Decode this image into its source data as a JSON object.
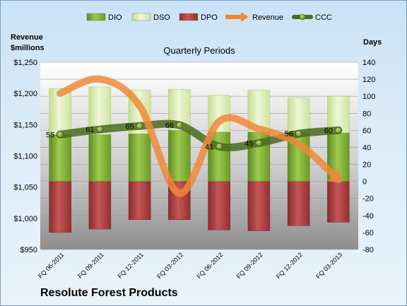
{
  "chart_data": {
    "type": "bar",
    "title": "Quarterly Periods",
    "company": "Resolute Forest Products",
    "left_axis_title_line1": "Revenue",
    "left_axis_title_line2": "$millions",
    "right_axis_title": "Days",
    "left_ylim": [
      950,
      1250
    ],
    "right_ylim": [
      -80,
      140
    ],
    "left_ticks": [
      "$950",
      "$1,000",
      "$1,050",
      "$1,100",
      "$1,150",
      "$1,200",
      "$1,250"
    ],
    "right_ticks": [
      "-80",
      "-60",
      "-40",
      "-20",
      "0",
      "20",
      "40",
      "60",
      "80",
      "100",
      "120",
      "140"
    ],
    "categories": [
      "FQ 06-2011",
      "FQ 09-2011",
      "FQ 12-2011",
      "FQ 03-2012",
      "FQ 06-2012",
      "FQ 09-2012",
      "FQ 12-2012",
      "FQ 03-2013"
    ],
    "series": [
      {
        "name": "DIO",
        "axis": "right",
        "color": "#76a031",
        "values": [
          55,
          55,
          56,
          60,
          58,
          58,
          57,
          57
        ]
      },
      {
        "name": "DSO",
        "axis": "right",
        "color": "#d7e8ae",
        "values": [
          54,
          56,
          51,
          48,
          43,
          49,
          41,
          43
        ]
      },
      {
        "name": "DPO",
        "axis": "right",
        "color": "#a23a3c",
        "values": [
          -60,
          -56,
          -45,
          -45,
          -57,
          -58,
          -52,
          -48
        ]
      },
      {
        "name": "Revenue",
        "axis": "left",
        "color": "#f0883a",
        "values": [
          1200,
          1223,
          1180,
          1040,
          1155,
          1143,
          1119,
          1062
        ]
      },
      {
        "name": "CCC",
        "axis": "right",
        "color": "#4b6b1f",
        "values": [
          55,
          61,
          65,
          66,
          41,
          45,
          56,
          60
        ]
      }
    ],
    "ccc_labels": [
      "55",
      "61",
      "65",
      "66",
      "41",
      "45",
      "56",
      "60"
    ],
    "legend_position": "top"
  }
}
